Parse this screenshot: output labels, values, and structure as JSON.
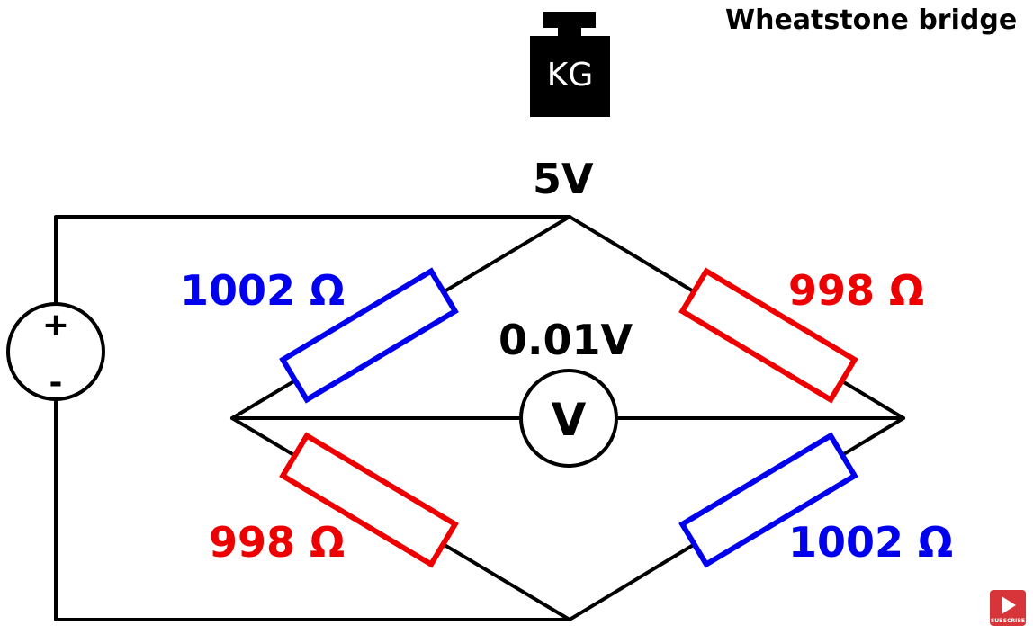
{
  "title": "Wheatstone bridge",
  "weight": {
    "label": "KG"
  },
  "supply_voltage": "5V",
  "meter": {
    "reading": "0.01V",
    "symbol": "V"
  },
  "source": {
    "plus": "+",
    "minus": "-"
  },
  "resistors": {
    "top_left": {
      "label": "1002 Ω",
      "color": "#0000ee"
    },
    "top_right": {
      "label": "998 Ω",
      "color": "#ee0000"
    },
    "bottom_left": {
      "label": "998 Ω",
      "color": "#ee0000"
    },
    "bottom_right": {
      "label": "1002 Ω",
      "color": "#0000ee"
    }
  },
  "subscribe": {
    "label": "SUBSCRIBE",
    "color": "#d8353a"
  }
}
